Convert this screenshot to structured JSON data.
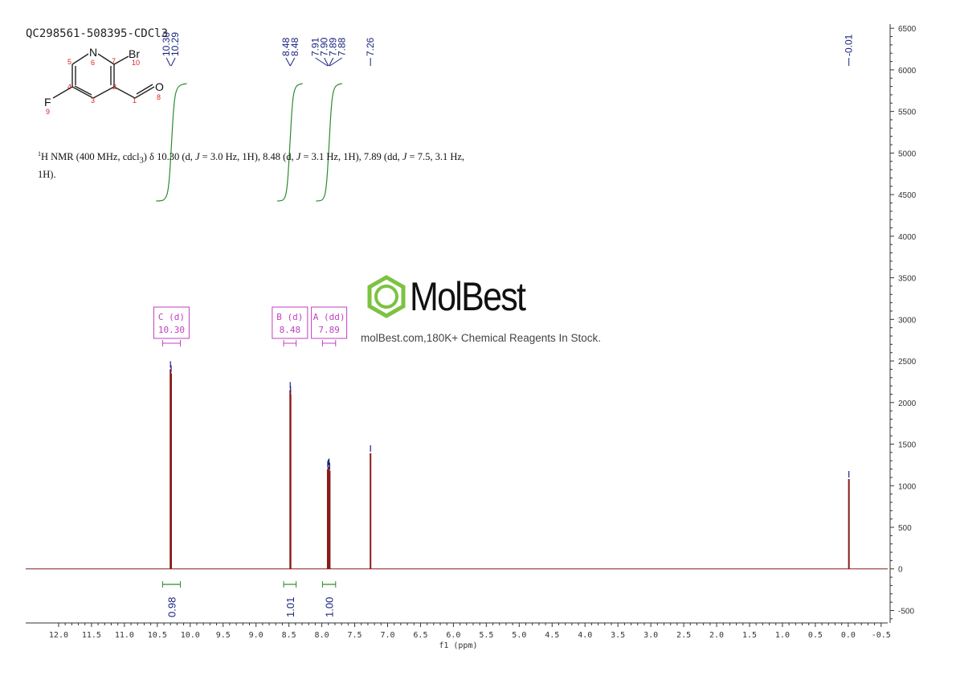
{
  "sample_id": "QC298561-508395-CDCl3",
  "nmr_text": {
    "prefix_sup": "1",
    "body_a": "H NMR (400 MHz, cdcl",
    "sub_3": "3",
    "body_b": ") δ 10.30 (d, ",
    "j": "J",
    "body_c": " = 3.0 Hz, 1H), 8.48 (d, ",
    "body_d": " = 3.1 Hz, 1H), 7.89 (dd, ",
    "body_e": " = 7.5, 3.1 Hz,",
    "body_f": "1H)."
  },
  "watermark": {
    "name": "MolBest",
    "tagline": "molBest.com,180K+ Chemical Reagents In Stock.",
    "color": "#7dc242"
  },
  "molecule": {
    "atoms": [
      {
        "symbol": "N",
        "index": "6"
      },
      {
        "symbol": "Br",
        "index": "10"
      },
      {
        "symbol": "O",
        "index": "8"
      },
      {
        "symbol": "F",
        "index": "9"
      },
      {
        "symbol": "",
        "index": "5"
      },
      {
        "symbol": "",
        "index": "7"
      },
      {
        "symbol": "",
        "index": "4"
      },
      {
        "symbol": "",
        "index": "2"
      },
      {
        "symbol": "",
        "index": "3"
      },
      {
        "symbol": "",
        "index": "1"
      }
    ]
  },
  "chart_data": {
    "type": "line",
    "xlabel": "f1 (ppm)",
    "ylabel": "",
    "xlim": [
      12.5,
      -0.6
    ],
    "ylim": [
      -650,
      6550
    ],
    "x_reversed": true,
    "x_ticks": [
      "12.0",
      "11.5",
      "11.0",
      "10.5",
      "10.0",
      "9.5",
      "9.0",
      "8.5",
      "8.0",
      "7.5",
      "7.0",
      "6.5",
      "6.0",
      "5.5",
      "5.0",
      "4.5",
      "4.0",
      "3.5",
      "3.0",
      "2.5",
      "2.0",
      "1.5",
      "1.0",
      "0.5",
      "0.0",
      "-0.5"
    ],
    "y_ticks": [
      "6500",
      "6000",
      "5500",
      "5000",
      "4500",
      "4000",
      "3500",
      "3000",
      "2500",
      "2000",
      "1500",
      "1000",
      "500",
      "0",
      "-500"
    ],
    "peaks": [
      {
        "ppm": 10.3,
        "height": 2400
      },
      {
        "ppm": 10.29,
        "height": 2350
      },
      {
        "ppm": 8.48,
        "height": 2150
      },
      {
        "ppm": 8.475,
        "height": 2100
      },
      {
        "ppm": 7.91,
        "height": 1200
      },
      {
        "ppm": 7.9,
        "height": 1220
      },
      {
        "ppm": 7.89,
        "height": 1230
      },
      {
        "ppm": 7.88,
        "height": 1180
      },
      {
        "ppm": 7.26,
        "height": 1390
      },
      {
        "ppm": -0.01,
        "height": 1080
      }
    ],
    "peak_labels": [
      {
        "group": [
          10.3,
          10.29
        ],
        "labels": [
          "10.30",
          "10.29"
        ]
      },
      {
        "group": [
          8.48,
          8.48
        ],
        "labels": [
          "8.48",
          "8.48"
        ]
      },
      {
        "group": [
          7.91,
          7.9,
          7.89,
          7.88
        ],
        "labels": [
          "7.91",
          "7.90",
          "7.89",
          "7.88"
        ]
      },
      {
        "group": [
          7.26
        ],
        "labels": [
          "7.26"
        ]
      },
      {
        "group": [
          -0.01
        ],
        "labels": [
          "-0.01"
        ]
      }
    ],
    "multiplets": [
      {
        "letter": "C",
        "mult": "(d)",
        "shift": "10.30",
        "range": [
          10.42,
          10.15
        ]
      },
      {
        "letter": "B",
        "mult": "(d)",
        "shift": "8.48",
        "range": [
          8.58,
          8.39
        ]
      },
      {
        "letter": "A",
        "mult": "(dd)",
        "shift": "7.89",
        "range": [
          7.99,
          7.79
        ]
      }
    ],
    "integrals": [
      {
        "value": "0.98",
        "range": [
          10.42,
          10.15
        ]
      },
      {
        "value": "1.01",
        "range": [
          8.58,
          8.39
        ]
      },
      {
        "value": "1.00",
        "range": [
          7.99,
          7.79
        ]
      }
    ],
    "colors": {
      "spectrum": "#8b1a1a",
      "peak_label": "#1a237e",
      "integral": "#2e8b2e",
      "multiplet": "#c040c0",
      "axis": "#333333"
    }
  }
}
